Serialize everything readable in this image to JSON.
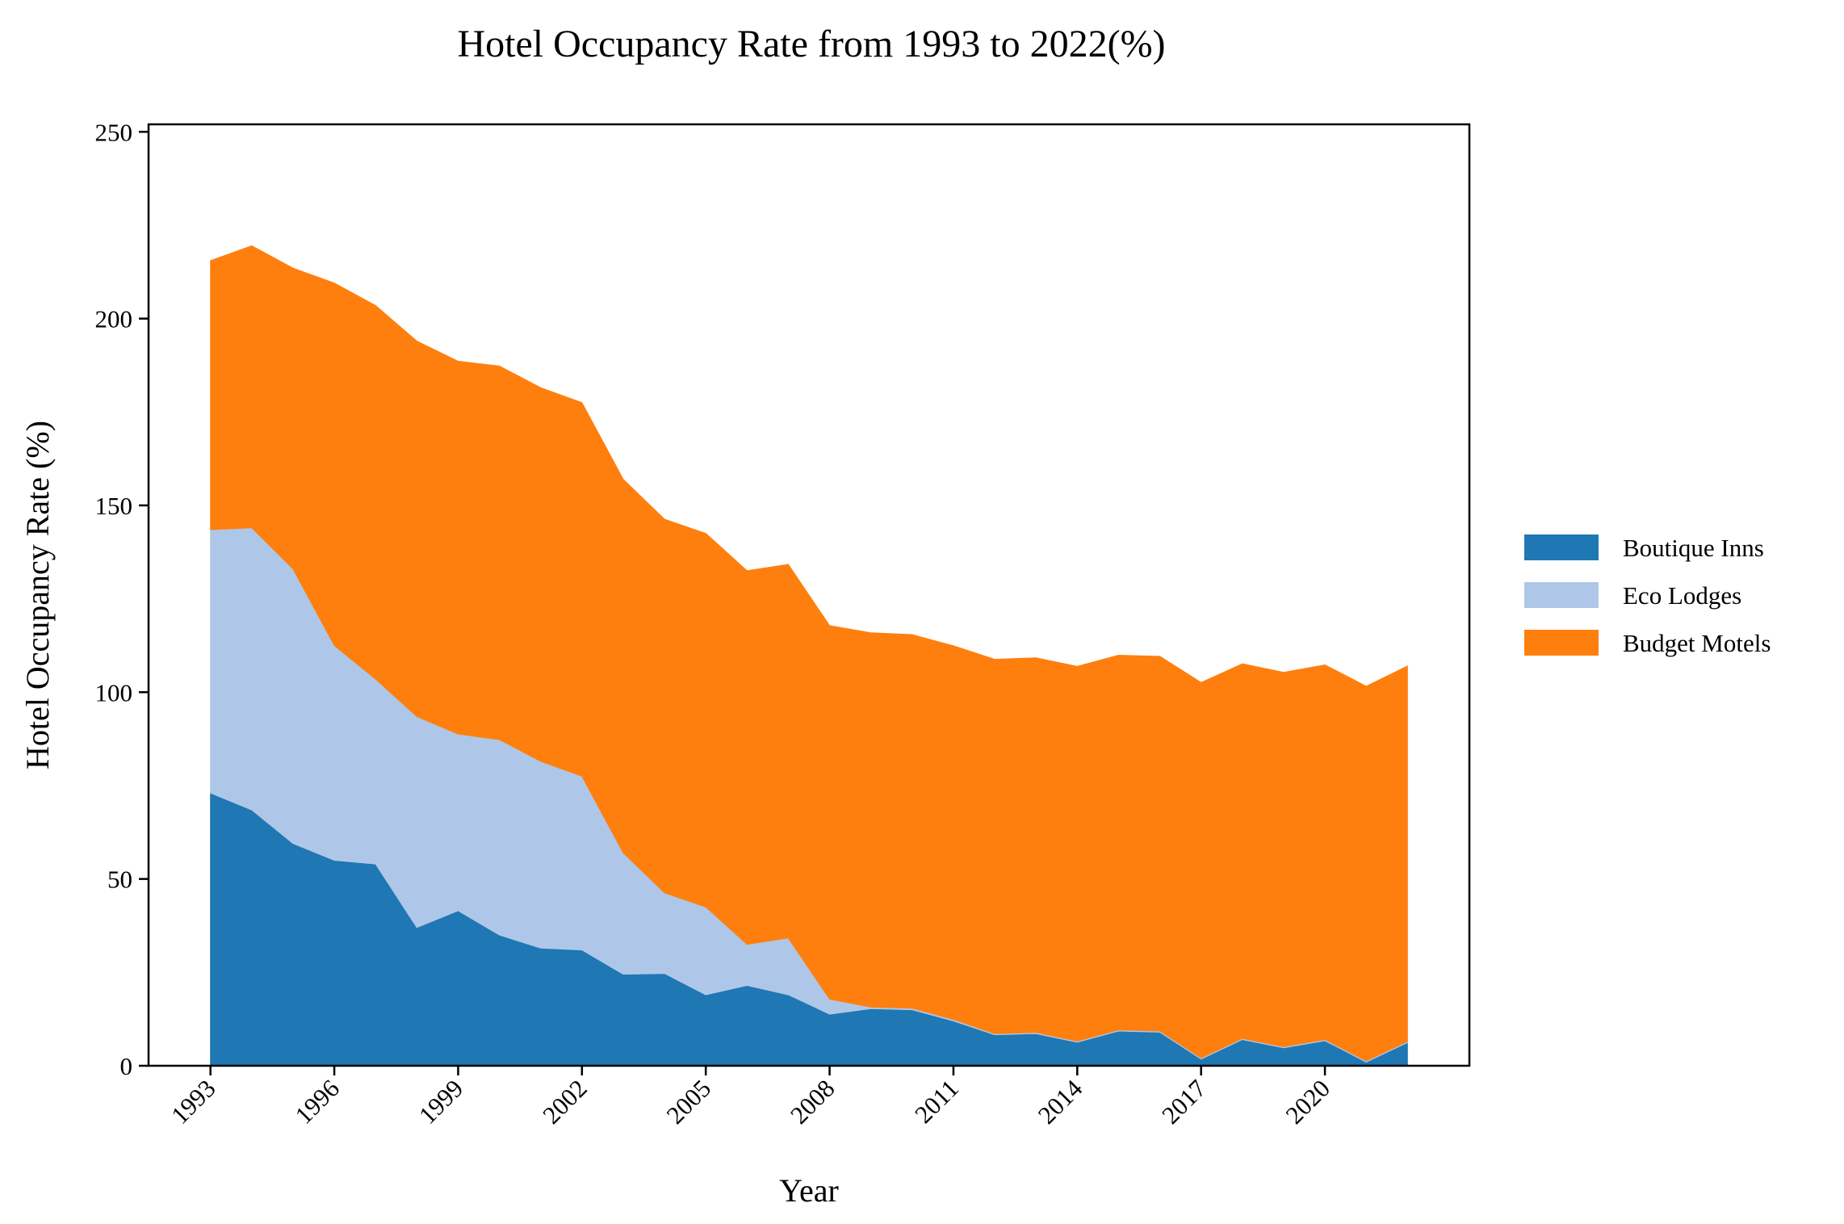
{
  "chart_data": {
    "type": "area",
    "stacked": true,
    "title": "Hotel Occupancy Rate from 1993 to 2022(%)",
    "xlabel": "Year",
    "ylabel": "Hotel Occupancy Rate (%)",
    "x": [
      1993,
      1994,
      1995,
      1996,
      1997,
      1998,
      1999,
      2000,
      2001,
      2002,
      2003,
      2004,
      2005,
      2006,
      2007,
      2008,
      2009,
      2010,
      2011,
      2012,
      2013,
      2014,
      2015,
      2016,
      2017,
      2018,
      2019,
      2020,
      2021,
      2022
    ],
    "xticks": [
      "1993",
      "1996",
      "1999",
      "2002",
      "2005",
      "2008",
      "2011",
      "2014",
      "2017",
      "2020"
    ],
    "yticks": [
      "0",
      "50",
      "100",
      "150",
      "200",
      "250"
    ],
    "ylim": [
      0,
      252
    ],
    "xlim": [
      1991.5,
      2023.5
    ],
    "grid": false,
    "legend_position": "right",
    "series": [
      {
        "name": "Boutique Inns",
        "color": "#1f77b4",
        "values": [
          73,
          68.5,
          59.5,
          55,
          54,
          37,
          41.5,
          35,
          31.5,
          31,
          24.5,
          24.7,
          19,
          21.5,
          19,
          13.8,
          15.3,
          15,
          12,
          8.3,
          8.6,
          6.3,
          9.3,
          9,
          1.8,
          7,
          4.8,
          6.7,
          1,
          6.2
        ]
      },
      {
        "name": "Eco Lodges",
        "color": "#aec7e8",
        "values": [
          70.5,
          75.5,
          73.5,
          57.5,
          49.5,
          56.5,
          47.3,
          52.3,
          50,
          46.5,
          32.5,
          21.6,
          23.5,
          11,
          15.2,
          4,
          0.4,
          0.4,
          0.4,
          0.3,
          0.3,
          0.3,
          0.3,
          0.3,
          0.3,
          0.3,
          0.3,
          0.3,
          0.3,
          0.3
        ]
      },
      {
        "name": "Budget Motels",
        "color": "#ff7f0e",
        "values": [
          72,
          75.5,
          80.5,
          97,
          100,
          100.5,
          99.8,
          100,
          100,
          100,
          100,
          100,
          100,
          100,
          100,
          100,
          100.2,
          100,
          100,
          100.2,
          100.3,
          100.3,
          100.3,
          100.3,
          100.5,
          100.3,
          100.2,
          100.3,
          100.3,
          100.5
        ]
      }
    ]
  }
}
